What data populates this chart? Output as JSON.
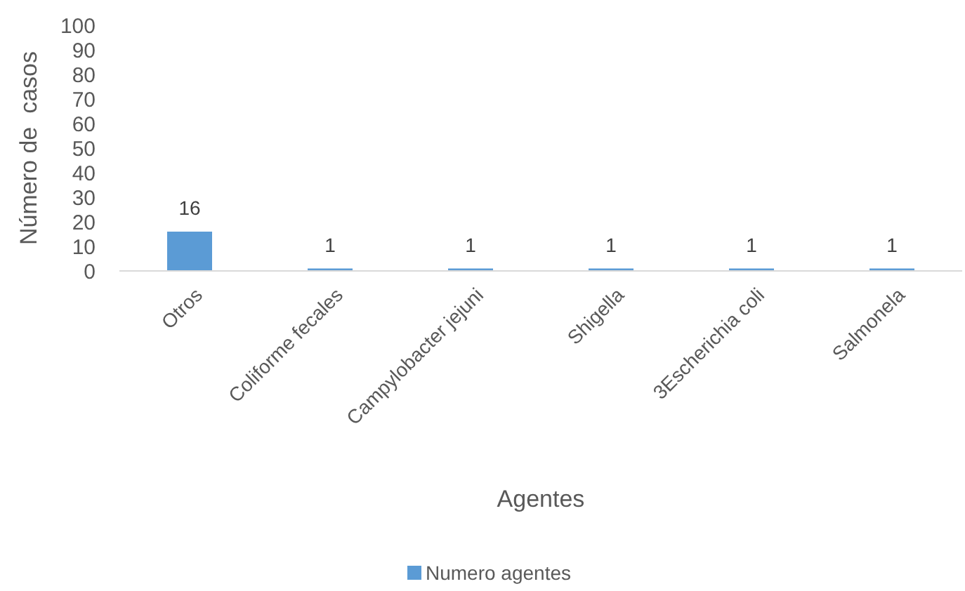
{
  "chart_data": {
    "type": "bar",
    "xlabel": "Agentes",
    "ylabel": "Número de  casos",
    "categories": [
      "Otros",
      "Coliforme fecales",
      "Campylobacter jejuni",
      "Shigella",
      "3Escherichia coli",
      "Salmonela"
    ],
    "series": [
      {
        "name": "Numero agentes",
        "color": "#5b9bd5",
        "values": [
          16,
          1,
          1,
          1,
          1,
          1
        ]
      }
    ],
    "ylim": [
      0,
      100
    ],
    "yticks": [
      0,
      10,
      20,
      30,
      40,
      50,
      60,
      70,
      80,
      90,
      100
    ],
    "data_labels": true,
    "grid": false,
    "legend": "bottom"
  }
}
